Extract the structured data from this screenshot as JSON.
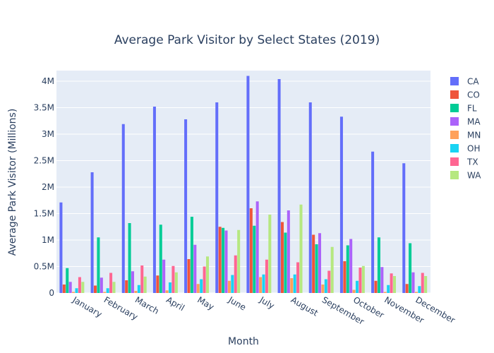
{
  "chart_data": {
    "type": "bar",
    "title": "Average Park Visitor by Select States (2019)",
    "xlabel": "Month",
    "ylabel": "Average Park Visitor (Millions)",
    "ylim": [
      0,
      4200000
    ],
    "yticks": [
      {
        "value": 0,
        "label": "0"
      },
      {
        "value": 500000,
        "label": "0.5M"
      },
      {
        "value": 1000000,
        "label": "1M"
      },
      {
        "value": 1500000,
        "label": "1.5M"
      },
      {
        "value": 2000000,
        "label": "2M"
      },
      {
        "value": 2500000,
        "label": "2.5M"
      },
      {
        "value": 3000000,
        "label": "3M"
      },
      {
        "value": 3500000,
        "label": "3.5M"
      },
      {
        "value": 4000000,
        "label": "4M"
      }
    ],
    "grid": true,
    "legend_position": "right",
    "categories": [
      "January",
      "February",
      "March",
      "April",
      "May",
      "June",
      "July",
      "August",
      "September",
      "October",
      "November",
      "December"
    ],
    "series": [
      {
        "name": "CA",
        "color": "#636efa",
        "values": [
          1710000,
          2280000,
          3190000,
          3520000,
          3280000,
          3600000,
          4100000,
          4040000,
          3600000,
          3330000,
          2670000,
          2450000
        ]
      },
      {
        "name": "CO",
        "color": "#ef553b",
        "values": [
          160000,
          140000,
          240000,
          330000,
          640000,
          1250000,
          1600000,
          1340000,
          1100000,
          600000,
          230000,
          170000
        ]
      },
      {
        "name": "FL",
        "color": "#00cc96",
        "values": [
          470000,
          1050000,
          1320000,
          1290000,
          1440000,
          1230000,
          1270000,
          1140000,
          920000,
          900000,
          1050000,
          940000
        ]
      },
      {
        "name": "MA",
        "color": "#ab63fa",
        "values": [
          210000,
          290000,
          410000,
          630000,
          910000,
          1180000,
          1730000,
          1560000,
          1130000,
          1020000,
          490000,
          390000
        ]
      },
      {
        "name": "MN",
        "color": "#ffa15a",
        "values": [
          20000,
          20000,
          40000,
          50000,
          170000,
          230000,
          300000,
          280000,
          160000,
          60000,
          20000,
          20000
        ]
      },
      {
        "name": "OH",
        "color": "#19d3f3",
        "values": [
          90000,
          90000,
          150000,
          200000,
          260000,
          340000,
          350000,
          350000,
          260000,
          230000,
          150000,
          130000
        ]
      },
      {
        "name": "TX",
        "color": "#ff6692",
        "values": [
          300000,
          380000,
          520000,
          510000,
          500000,
          710000,
          630000,
          580000,
          420000,
          480000,
          370000,
          380000
        ]
      },
      {
        "name": "WA",
        "color": "#b6e880",
        "values": [
          210000,
          210000,
          310000,
          390000,
          690000,
          1190000,
          1480000,
          1670000,
          870000,
          510000,
          320000,
          320000
        ]
      }
    ]
  }
}
